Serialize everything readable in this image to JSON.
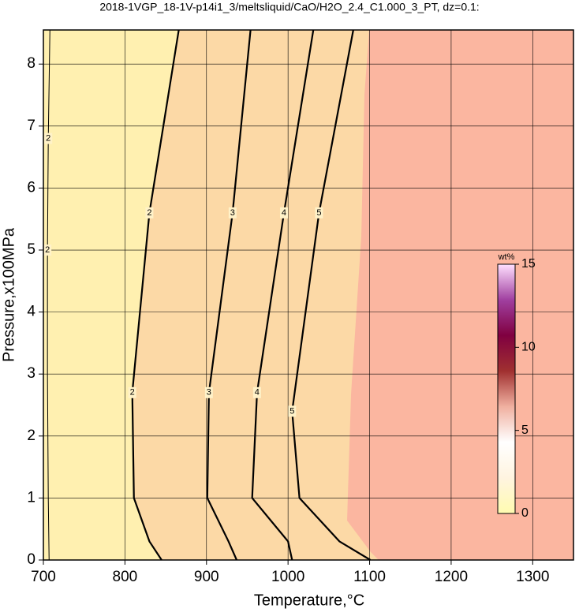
{
  "chart_data": {
    "type": "contour",
    "title": "2018-1VGP_18-1V-p14i1_3/meltsliquid/CaO/H2O_2.4_C1.000_3_PT, dz=0.1:",
    "xlabel": "Temperature,°C",
    "ylabel": "Pressure,x100MPa",
    "xlim": [
      700,
      1350
    ],
    "ylim": [
      0,
      8.55
    ],
    "xticks": [
      700,
      800,
      900,
      1000,
      1100,
      1200,
      1300
    ],
    "yticks": [
      0,
      1,
      2,
      3,
      4,
      5,
      6,
      7,
      8
    ],
    "grid": true,
    "colorbar": {
      "label": "wt%",
      "clim": [
        0,
        15
      ],
      "ticks": [
        0,
        5,
        10,
        15
      ],
      "colors": [
        "#fffbb0",
        "#fff4e0",
        "#ffffff",
        "#f0b0a0",
        "#a03030",
        "#800040",
        "#a040a0",
        "#ffe0ff"
      ]
    },
    "fill_colors": [
      "#fff0b0",
      "#fcd9a6",
      "#fbb6a0"
    ],
    "contours": [
      {
        "level": 2,
        "T": [
          707,
          706,
          705,
          705,
          706,
          708
        ],
        "P": [
          0,
          1,
          3,
          5,
          6.8,
          8.55
        ]
      },
      {
        "level": 2,
        "T": [
          845,
          830,
          811,
          809,
          830,
          866
        ],
        "P": [
          0,
          0.3,
          1,
          2.7,
          5.6,
          8.55
        ]
      },
      {
        "level": 3,
        "T": [
          937,
          927,
          901,
          903,
          932,
          954
        ],
        "P": [
          0,
          0.3,
          1,
          2.7,
          5.6,
          8.55
        ]
      },
      {
        "level": 4,
        "T": [
          1005,
          1000,
          956,
          962,
          995,
          1031
        ],
        "P": [
          0,
          0.3,
          1,
          2.7,
          5.6,
          8.55
        ]
      },
      {
        "level": 5,
        "T": [
          1101,
          1063,
          1014,
          1005,
          1038,
          1080
        ],
        "P": [
          0,
          0.3,
          1,
          2.4,
          5.6,
          8.55
        ]
      }
    ]
  }
}
